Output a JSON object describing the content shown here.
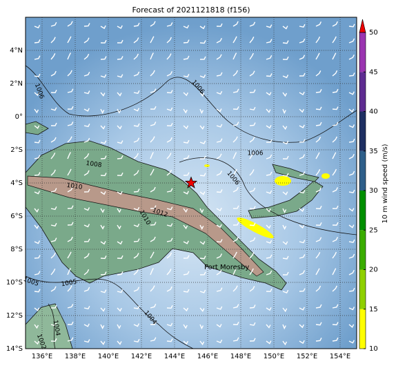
{
  "title": "Forecast of 2021121818 (f156)",
  "map": {
    "lon_ticks": [
      {
        "value": 136,
        "label": "136°E"
      },
      {
        "value": 138,
        "label": "138°E"
      },
      {
        "value": 140,
        "label": "140°E"
      },
      {
        "value": 142,
        "label": "142°E"
      },
      {
        "value": 144,
        "label": "144°E"
      },
      {
        "value": 146,
        "label": "146°E"
      },
      {
        "value": 148,
        "label": "148°E"
      },
      {
        "value": 150,
        "label": "150°E"
      },
      {
        "value": 152,
        "label": "152°E"
      },
      {
        "value": 154,
        "label": "154°E"
      }
    ],
    "lat_ticks": [
      {
        "value": 4,
        "label": "4°N"
      },
      {
        "value": 2,
        "label": "2°N"
      },
      {
        "value": 0,
        "label": "0°"
      },
      {
        "value": -2,
        "label": "2°S"
      },
      {
        "value": -4,
        "label": "4°S"
      },
      {
        "value": -6,
        "label": "6°S"
      },
      {
        "value": -8,
        "label": "8°S"
      },
      {
        "value": -10,
        "label": "10°S"
      },
      {
        "value": -12,
        "label": "12°S"
      },
      {
        "value": -14,
        "label": "14°S"
      }
    ],
    "lon_range": [
      135,
      155
    ],
    "lat_range": [
      6,
      -14
    ],
    "marker": {
      "lon": 145,
      "lat": -4
    },
    "place_label": "Port Moresby",
    "contour_labels": [
      "1006",
      "1006",
      "1006",
      "1006",
      "1008",
      "1010",
      "1012",
      "1010",
      "1005",
      "1005",
      "1004",
      "1004",
      "1002"
    ]
  },
  "colorbar": {
    "label": "10 m wind speed (m/s)",
    "range": [
      10,
      50
    ],
    "ticks": [
      10,
      15,
      20,
      25,
      30,
      35,
      40,
      45,
      50
    ],
    "colors": [
      "#ffff00",
      "#8fd000",
      "#3aac00",
      "#008f00",
      "#2e5f8a",
      "#1e2f62",
      "#5e2c91",
      "#9a34b0"
    ]
  }
}
